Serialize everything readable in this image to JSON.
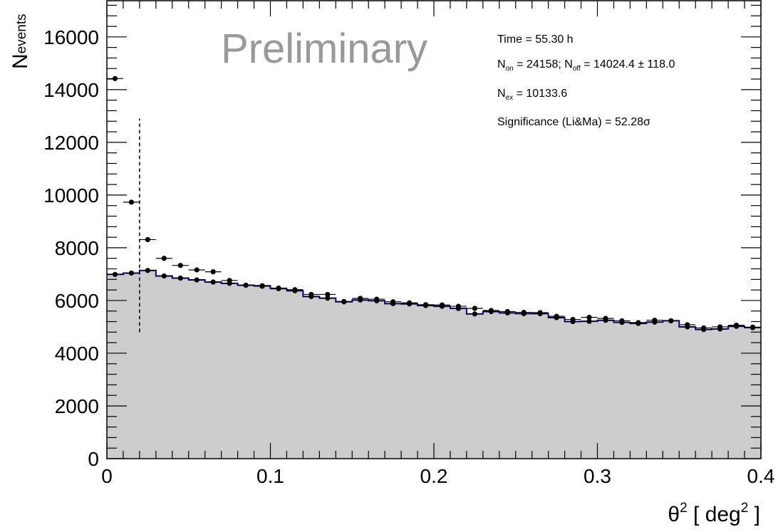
{
  "chart_data": {
    "type": "histogram",
    "title": "",
    "xlabel": {
      "main": "θ",
      "sup1": "2",
      "rest": " [ deg",
      "sup2": "2",
      "end": " ]"
    },
    "ylabel": {
      "main": "N",
      "sub": "events"
    },
    "xlim": [
      0,
      0.4
    ],
    "ylim": [
      0,
      17400
    ],
    "x_ticks": [
      "0",
      "0.1",
      "0.2",
      "0.3",
      "0.4"
    ],
    "y_ticks": [
      "0",
      "2000",
      "4000",
      "6000",
      "8000",
      "10000",
      "12000",
      "14000",
      "16000"
    ],
    "grid": false,
    "watermark": "Preliminary",
    "cut_line_x": 0.02,
    "cut_line_y_range": [
      4800,
      12900
    ],
    "bin_width": 0.01,
    "bin_centers": [
      0.005,
      0.015,
      0.025,
      0.035,
      0.045,
      0.055,
      0.065,
      0.075,
      0.085,
      0.095,
      0.105,
      0.115,
      0.125,
      0.135,
      0.145,
      0.155,
      0.165,
      0.175,
      0.185,
      0.195,
      0.205,
      0.215,
      0.225,
      0.235,
      0.245,
      0.255,
      0.265,
      0.275,
      0.285,
      0.295,
      0.305,
      0.315,
      0.325,
      0.335,
      0.345,
      0.355,
      0.365,
      0.375,
      0.385,
      0.395
    ],
    "series": [
      {
        "name": "on",
        "values": [
          14420,
          9730,
          8310,
          7600,
          7330,
          7160,
          7090,
          6760,
          6580,
          6540,
          6470,
          6410,
          6230,
          6230,
          5960,
          6080,
          6050,
          5950,
          5910,
          5840,
          5830,
          5780,
          5700,
          5620,
          5580,
          5550,
          5540,
          5400,
          5280,
          5360,
          5320,
          5230,
          5160,
          5250,
          5230,
          5080,
          4960,
          5000,
          5060,
          4990
        ]
      },
      {
        "name": "off",
        "values": [
          6990,
          7040,
          7140,
          6930,
          6850,
          6780,
          6700,
          6650,
          6580,
          6560,
          6450,
          6370,
          6150,
          6090,
          5950,
          6020,
          5990,
          5880,
          5870,
          5810,
          5780,
          5700,
          5490,
          5580,
          5530,
          5500,
          5500,
          5350,
          5200,
          5210,
          5250,
          5170,
          5130,
          5180,
          5230,
          5000,
          4900,
          4920,
          5020,
          4970
        ]
      }
    ],
    "stats": {
      "time": "Time = 55.30 h",
      "n_on_label": "N",
      "n_on_sub": "on",
      "n_on_value": " = 24158; N",
      "n_off_sub": "off",
      "n_off_value": " = 14024.4 ± 118.0",
      "n_ex_label": "N",
      "n_ex_sub": "ex",
      "n_ex_value": " = 10133.6",
      "significance": "Significance (Li&Ma) = 52.28σ"
    },
    "colors": {
      "fill": "#cccccc",
      "background_line": "#0000aa",
      "points": "#000000",
      "watermark": "#999999"
    }
  }
}
